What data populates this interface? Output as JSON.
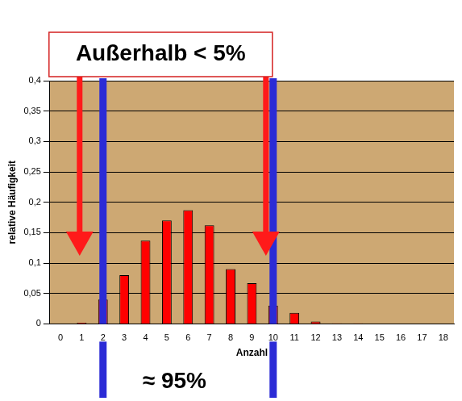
{
  "chart_data": {
    "type": "bar",
    "categories": [
      0,
      1,
      2,
      3,
      4,
      5,
      6,
      7,
      8,
      9,
      10,
      11,
      12,
      13,
      14,
      15,
      16,
      17,
      18
    ],
    "values": [
      0,
      0.002,
      0.04,
      0.08,
      0.137,
      0.17,
      0.187,
      0.162,
      0.09,
      0.067,
      0.03,
      0.018,
      0.004,
      0.001,
      0.001,
      0,
      0,
      0,
      0
    ],
    "color": "#ff0000",
    "ylim": [
      0,
      0.4
    ],
    "yticks": [
      0,
      {
        "value": 0.05,
        "label": "0,05"
      },
      {
        "value": 0.1,
        "label": "0,1"
      },
      {
        "value": 0.15,
        "label": "0,15"
      },
      {
        "value": 0.2,
        "label": "0,2"
      },
      {
        "value": 0.25,
        "label": "0,25"
      },
      {
        "value": 0.3,
        "label": "0,3"
      },
      {
        "value": 0.35,
        "label": "0,35"
      },
      {
        "value": 0.4,
        "label": "0,4"
      }
    ],
    "grid": true,
    "x_label": "Anzahl",
    "y_label": "relative Häufigkeit",
    "outside_label": "Außerhalb < 5%",
    "inside_label": "≈ 95%",
    "interval": [
      2,
      10
    ]
  }
}
